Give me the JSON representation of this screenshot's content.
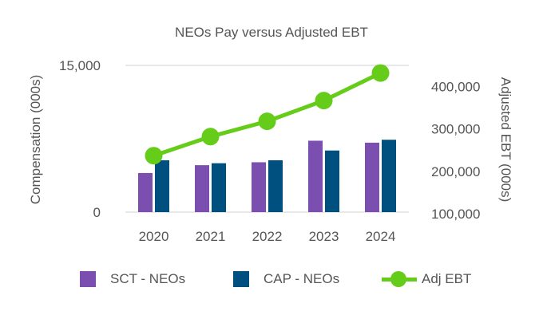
{
  "chart_data": {
    "type": "bar+line",
    "title": "NEOs Pay versus Adjusted EBT",
    "categories": [
      "2020",
      "2021",
      "2022",
      "2023",
      "2024"
    ],
    "ylabel": "Compensation (000s)",
    "ylabel_right": "Adjusted EBT (000s)",
    "ylim": [
      0,
      15000
    ],
    "ylim_right": [
      100000,
      450000
    ],
    "y_ticks": [
      "15,000",
      "0"
    ],
    "y_ticks_right": [
      "400,000",
      "300,000",
      "200,000",
      "100,000"
    ],
    "series": [
      {
        "name": "SCT - NEOs",
        "kind": "bar",
        "axis": "left",
        "color": "#7b4fb0",
        "values": [
          4000,
          4800,
          5100,
          7300,
          7100
        ]
      },
      {
        "name": "CAP - NEOs",
        "kind": "bar",
        "axis": "left",
        "color": "#00507f",
        "values": [
          5300,
          5000,
          5300,
          6300,
          7400
        ]
      },
      {
        "name": "Adj EBT",
        "kind": "line",
        "axis": "right",
        "color": "#66cc1a",
        "values": [
          237000,
          282000,
          318000,
          367000,
          432000
        ]
      }
    ],
    "legend_position": "bottom"
  }
}
